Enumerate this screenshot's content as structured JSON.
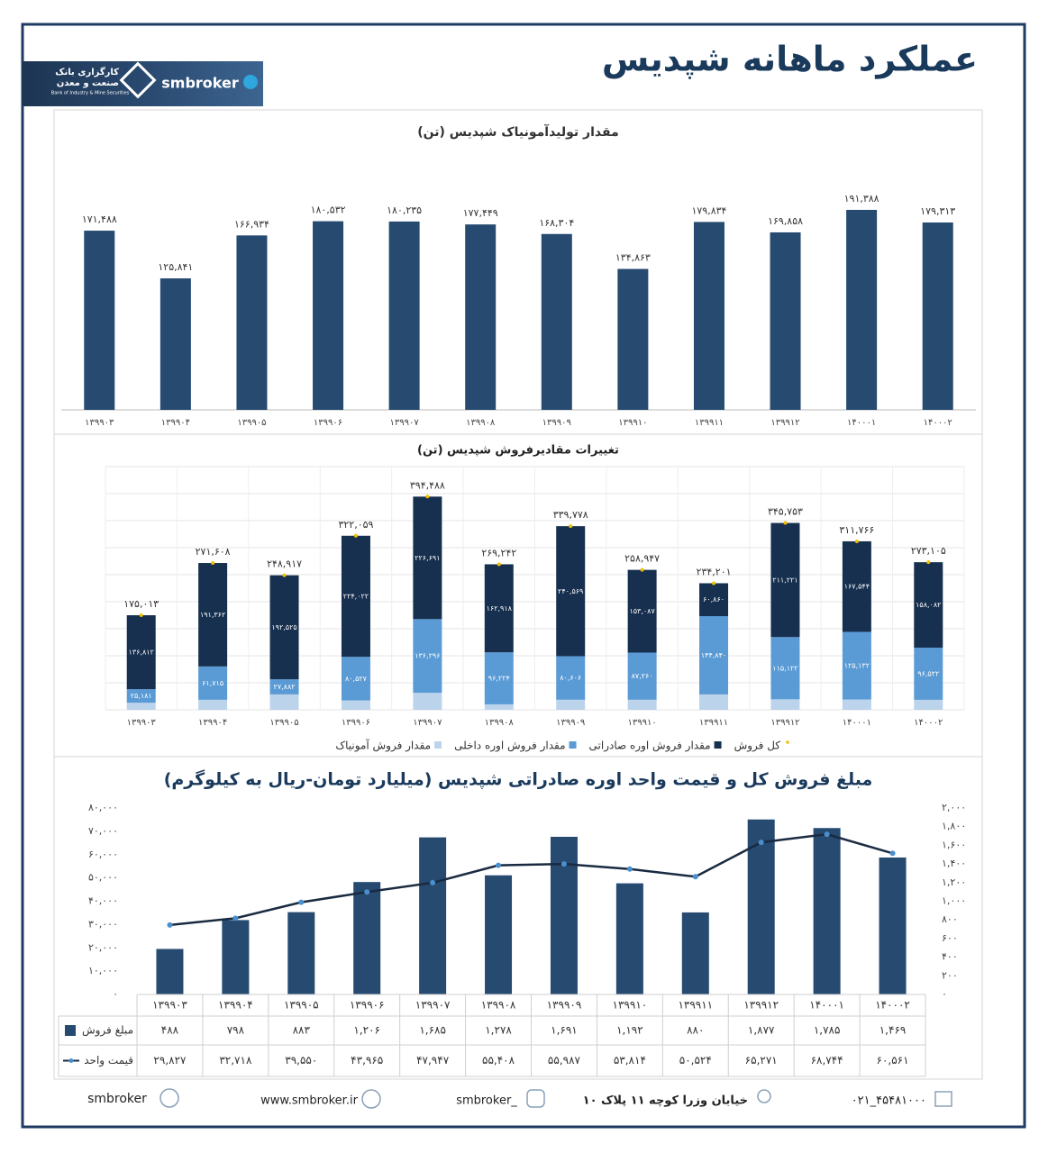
{
  "header": {
    "title": "عملکرد ماهانه شپدیس",
    "logo_fa_1": "کارگزاری بانک",
    "logo_fa_2": "صنعت و معدن",
    "logo_en": "Bank of Industry & Mine Securities",
    "brand": "smbroker"
  },
  "chart_data": [
    {
      "type": "bar",
      "title": "مقدار تولیدآمونیاک شپدیس (تن)",
      "categories": [
        "۱۳۹۹۰۳",
        "۱۳۹۹۰۴",
        "۱۳۹۹۰۵",
        "۱۳۹۹۰۶",
        "۱۳۹۹۰۷",
        "۱۳۹۹۰۸",
        "۱۳۹۹۰۹",
        "۱۳۹۹۱۰",
        "۱۳۹۹۱۱",
        "۱۳۹۹۱۲",
        "۱۴۰۰۰۱",
        "۱۴۰۰۰۲"
      ],
      "values": [
        171488,
        125841,
        166934,
        180532,
        180235,
        177449,
        168304,
        134863,
        179834,
        169858,
        191388,
        179313
      ],
      "value_labels": [
        "۱۷۱,۴۸۸",
        "۱۲۵,۸۴۱",
        "۱۶۶,۹۳۴",
        "۱۸۰,۵۳۲",
        "۱۸۰,۲۳۵",
        "۱۷۷,۴۴۹",
        "۱۶۸,۳۰۴",
        "۱۳۴,۸۶۳",
        "۱۷۹,۸۳۴",
        "۱۶۹,۸۵۸",
        "۱۹۱,۳۸۸",
        "۱۷۹,۳۱۳"
      ],
      "color": "#264a70",
      "ylim": [
        0,
        200000
      ]
    },
    {
      "type": "stacked_bar",
      "title": "تغییرات مقادیرفروش شپدیس (تن)",
      "categories": [
        "۱۳۹۹۰۳",
        "۱۳۹۹۰۴",
        "۱۳۹۹۰۵",
        "۱۳۹۹۰۶",
        "۱۳۹۹۰۷",
        "۱۳۹۹۰۸",
        "۱۳۹۹۰۹",
        "۱۳۹۹۱۰",
        "۱۳۹۹۱۱",
        "۱۳۹۹۱۲",
        "۱۴۰۰۰۱",
        "۱۴۰۰۰۲"
      ],
      "series": [
        {
          "name": "مقدار فروش آمونیاک",
          "color": "#bcd3ec",
          "values": [
            13020,
            18531,
            28510,
            17510,
            31501,
            10100,
            18603,
            18600,
            28501,
            19410,
            19090,
            18501
          ]
        },
        {
          "name": "مقدار فروش اوره داخلی",
          "color": "#5b9bd5",
          "values": [
            25181,
            61715,
            27882,
            80527,
            136296,
            96224,
            80606,
            87260,
            144840,
            115122,
            125132,
            96522
          ],
          "value_labels": [
            "۲۵,۱۸۱",
            "۶۱,۷۱۵",
            "۲۷,۸۸۲",
            "۸۰,۵۲۷",
            "۱۳۶,۲۹۶",
            "۹۶,۲۲۴",
            "۸۰,۶۰۶",
            "۸۷,۲۶۰",
            "۱۴۴,۸۴۰",
            "۱۱۵,۱۲۲",
            "۱۲۵,۱۳۲",
            "۹۶,۵۲۲"
          ]
        },
        {
          "name": "مقدار فروش اوره صادراتی",
          "color": "#17304f",
          "values": [
            136812,
            191362,
            192525,
            224022,
            226691,
            162918,
            240569,
            153087,
            60860,
            211221,
            167544,
            158082
          ],
          "value_labels": [
            "۱۳۶,۸۱۲",
            "۱۹۱,۳۶۲",
            "۱۹۲,۵۲۵",
            "۲۲۴,۰۲۲",
            "۲۲۶,۶۹۱",
            "۱۶۲,۹۱۸",
            "۲۴۰,۵۶۹",
            "۱۵۳,۰۸۷",
            "۶۰,۸۶۰",
            "۲۱۱,۲۲۱",
            "۱۶۷,۵۴۴",
            "۱۵۸,۰۸۲"
          ]
        }
      ],
      "totals": {
        "name": "کل فروش",
        "color": "#f0c000",
        "values": [
          175013,
          271608,
          248917,
          322059,
          394488,
          269242,
          339778,
          258947,
          234201,
          345753,
          311766,
          273105
        ],
        "value_labels": [
          "۱۷۵,۰۱۳",
          "۲۷۱,۶۰۸",
          "۲۴۸,۹۱۷",
          "۳۲۲,۰۵۹",
          "۳۹۴,۴۸۸",
          "۲۶۹,۲۴۲",
          "۳۳۹,۷۷۸",
          "۲۵۸,۹۴۷",
          "۲۳۴,۲۰۱",
          "۳۴۵,۷۵۳",
          "۳۱۱,۷۶۶",
          "۲۷۳,۱۰۵"
        ]
      },
      "ylim": [
        0,
        450000
      ],
      "yticks": [
        0,
        50000,
        100000,
        150000,
        200000,
        250000,
        300000,
        350000,
        400000,
        450000
      ],
      "grid": true,
      "legend": "bottom"
    },
    {
      "type": "combo",
      "title": "مبلغ فروش کل و قیمت واحد اوره صادراتی  شپدیس (میلیارد تومان-ریال به کیلوگرم)",
      "categories": [
        "۱۳۹۹۰۳",
        "۱۳۹۹۰۴",
        "۱۳۹۹۰۵",
        "۱۳۹۹۰۶",
        "۱۳۹۹۰۷",
        "۱۳۹۹۰۸",
        "۱۳۹۹۰۹",
        "۱۳۹۹۱۰",
        "۱۳۹۹۱۱",
        "۱۳۹۹۱۲",
        "۱۴۰۰۰۱",
        "۱۴۰۰۰۲"
      ],
      "series": [
        {
          "name": "مبلغ فروش",
          "type": "bar",
          "axis": "y2",
          "color": "#264a70",
          "values": [
            488,
            798,
            883,
            1206,
            1685,
            1278,
            1691,
            1192,
            880,
            1877,
            1785,
            1469
          ],
          "value_labels": [
            "۴۸۸",
            "۷۹۸",
            "۸۸۳",
            "۱,۲۰۶",
            "۱,۶۸۵",
            "۱,۲۷۸",
            "۱,۶۹۱",
            "۱,۱۹۲",
            "۸۸۰",
            "۱,۸۷۷",
            "۱,۷۸۵",
            "۱,۴۶۹"
          ]
        },
        {
          "name": "قیمت واحد",
          "type": "line",
          "axis": "y",
          "color": "#1a2a40",
          "marker_color": "#4a8fd0",
          "values": [
            29827,
            32718,
            39550,
            43965,
            47947,
            55408,
            55987,
            53814,
            50524,
            65271,
            68744,
            60561
          ],
          "value_labels": [
            "۲۹,۸۲۷",
            "۳۲,۷۱۸",
            "۳۹,۵۵۰",
            "۴۳,۹۶۵",
            "۴۷,۹۴۷",
            "۵۵,۴۰۸",
            "۵۵,۹۸۷",
            "۵۳,۸۱۴",
            "۵۰,۵۲۴",
            "۶۵,۲۷۱",
            "۶۸,۷۴۴",
            "۶۰,۵۶۱"
          ]
        }
      ],
      "ylim": [
        0,
        80000
      ],
      "yticks": [
        {
          "value": 0,
          "label": "۰"
        },
        {
          "value": 10000,
          "label": "۱۰,۰۰۰"
        },
        {
          "value": 20000,
          "label": "۲۰,۰۰۰"
        },
        {
          "value": 30000,
          "label": "۳۰,۰۰۰"
        },
        {
          "value": 40000,
          "label": "۴۰,۰۰۰"
        },
        {
          "value": 50000,
          "label": "۵۰,۰۰۰"
        },
        {
          "value": 60000,
          "label": "۶۰,۰۰۰"
        },
        {
          "value": 70000,
          "label": "۷۰,۰۰۰"
        },
        {
          "value": 80000,
          "label": "۸۰,۰۰۰"
        }
      ],
      "y2lim": [
        0,
        2000
      ],
      "y2ticks": [
        {
          "value": 0,
          "label": "۰"
        },
        {
          "value": 200,
          "label": "۲۰۰"
        },
        {
          "value": 400,
          "label": "۴۰۰"
        },
        {
          "value": 600,
          "label": "۶۰۰"
        },
        {
          "value": 800,
          "label": "۸۰۰"
        },
        {
          "value": 1000,
          "label": "۱,۰۰۰"
        },
        {
          "value": 1200,
          "label": "۱,۲۰۰"
        },
        {
          "value": 1400,
          "label": "۱,۴۰۰"
        },
        {
          "value": 1600,
          "label": "۱,۶۰۰"
        },
        {
          "value": 1800,
          "label": "۱,۸۰۰"
        },
        {
          "value": 2000,
          "label": "۲,۰۰۰"
        }
      ]
    }
  ],
  "footer": {
    "telegram": "smbroker",
    "website": "www.smbroker.ir",
    "instagram": "smbroker_",
    "address": "خیابان وزرا کوچه ۱۱ پلاک ۱۰",
    "phone": "۰۲۱_۴۵۴۸۱۰۰۰"
  }
}
